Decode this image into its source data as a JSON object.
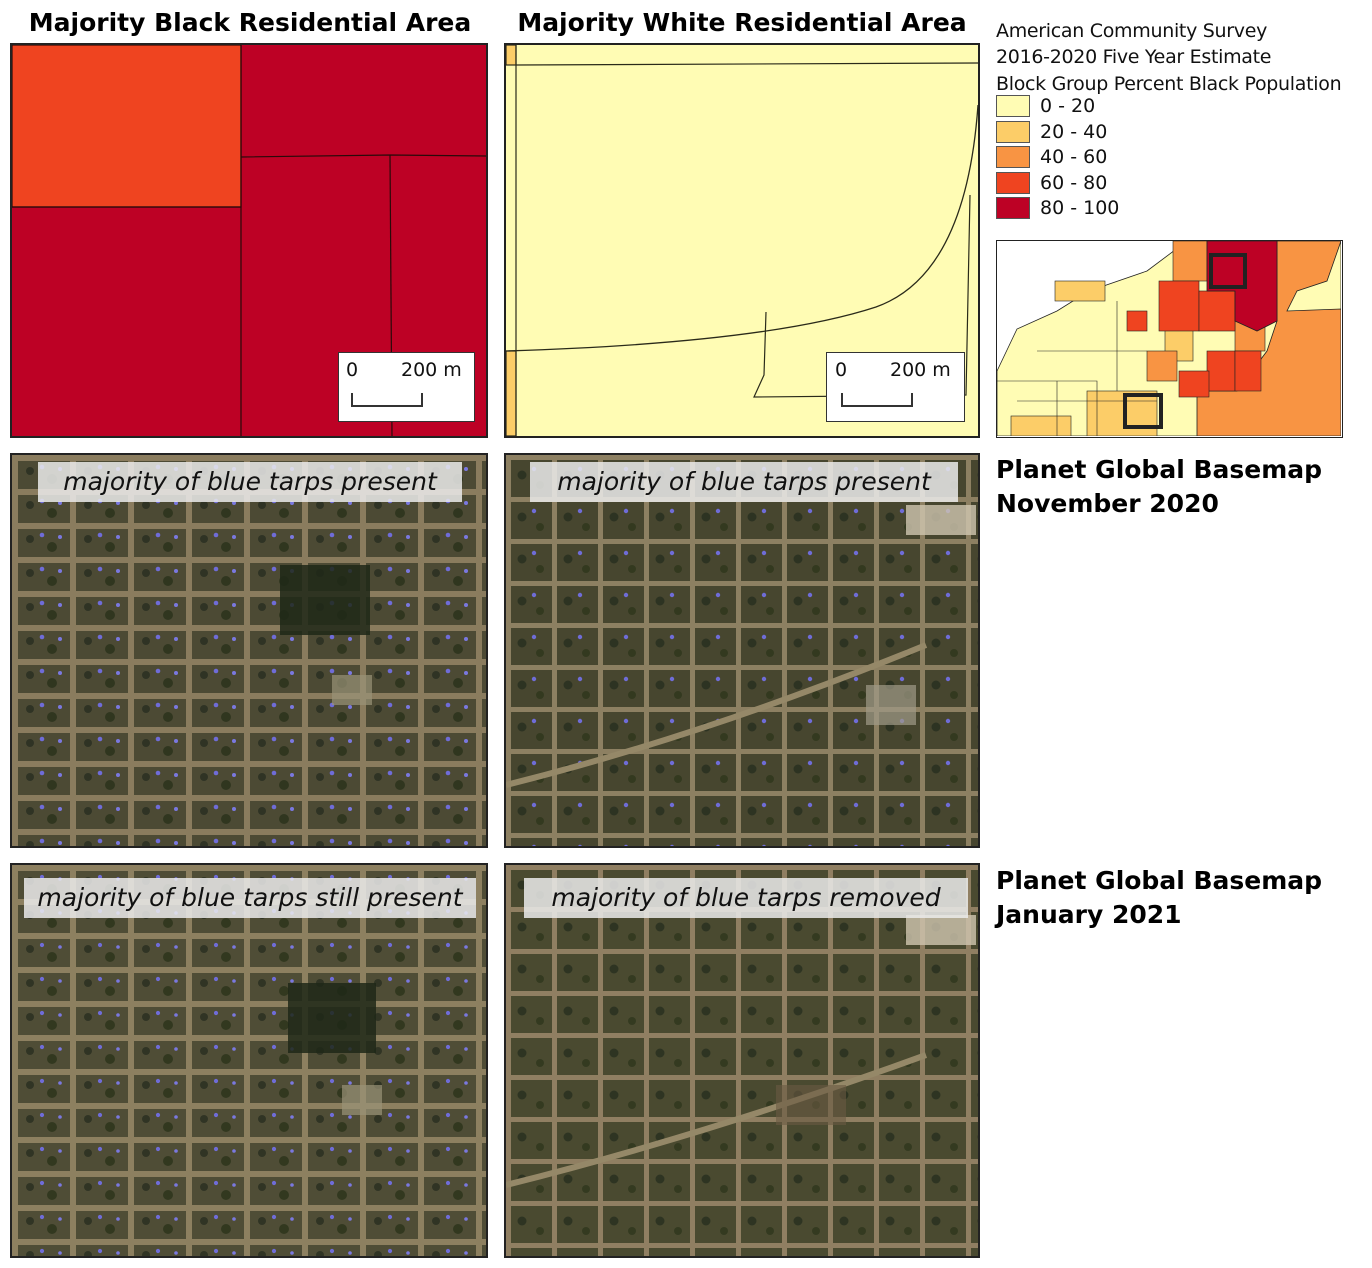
{
  "map_titles": {
    "black_area": "Majority Black Residential Area",
    "white_area": "Majority White Residential Area"
  },
  "legend": {
    "title_line1": "American Community Survey",
    "title_line2": "2016-2020 Five Year Estimate",
    "title_line3": "Block Group Percent Black Population",
    "classes": [
      {
        "label": "0 - 20",
        "color": "#fffcb4"
      },
      {
        "label": "20 - 40",
        "color": "#fccd68"
      },
      {
        "label": "40 - 60",
        "color": "#f89443"
      },
      {
        "label": "60 - 80",
        "color": "#ef4420"
      },
      {
        "label": "80 - 100",
        "color": "#bd0125"
      }
    ]
  },
  "scale_bar": {
    "start": "0",
    "end": "200 m"
  },
  "rows": {
    "nov2020": {
      "title_line1": "Planet Global Basemap",
      "title_line2": "November 2020",
      "left_caption": "majority of blue tarps present",
      "right_caption": "majority of blue tarps present"
    },
    "jan2021": {
      "title_line1": "Planet Global Basemap",
      "title_line2": "January 2021",
      "left_caption": "majority of blue tarps still present",
      "right_caption": "majority of blue tarps removed"
    }
  }
}
